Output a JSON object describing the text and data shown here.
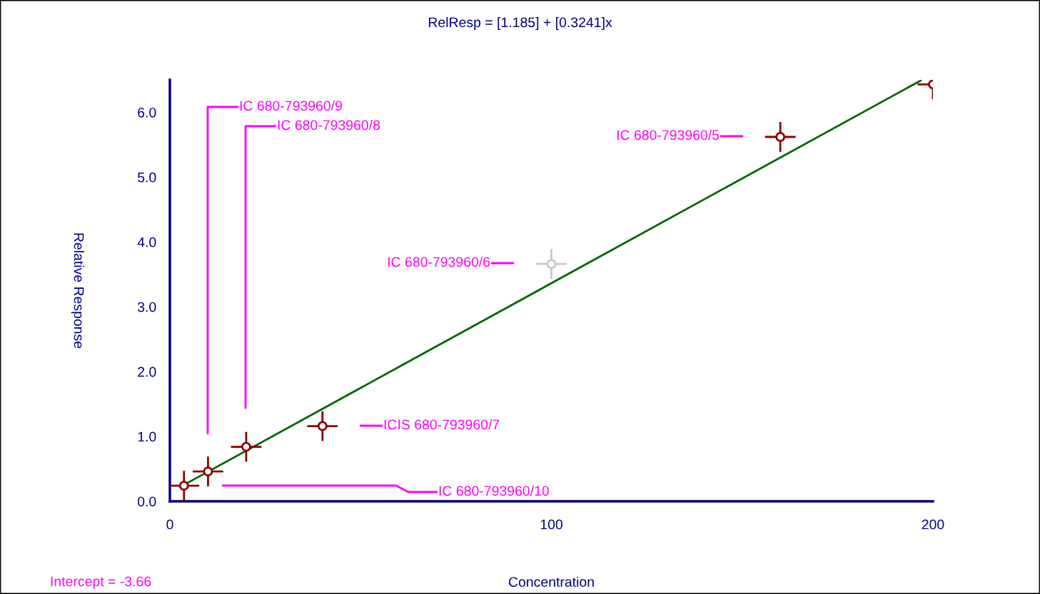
{
  "chart_data": {
    "type": "scatter",
    "title": "RelResp = [1.185] + [0.3241]x",
    "xlabel": "Concentration",
    "ylabel": "Relative Response",
    "xlim": [
      0,
      200
    ],
    "xticks": [
      0,
      100,
      200
    ],
    "ylim": [
      0,
      6.5
    ],
    "yticks": [
      {
        "value": 0,
        "label": "0.0"
      },
      {
        "value": 1,
        "label": "1.0"
      },
      {
        "value": 2,
        "label": "2.0"
      },
      {
        "value": 3,
        "label": "3.0"
      },
      {
        "value": 4,
        "label": "4.0"
      },
      {
        "value": 5,
        "label": "5.0"
      },
      {
        "value": 6,
        "label": "6.0"
      }
    ],
    "grid": false,
    "series": [
      {
        "marker": "circle",
        "x": [
          3.7,
          10,
          20,
          40,
          100,
          160,
          200
        ],
        "values": [
          0.24,
          0.46,
          0.84,
          1.16,
          3.66,
          5.62,
          6.43
        ],
        "colors": [
          "#8b0000",
          "#8b0000",
          "#8b0000",
          "#8b0000",
          "#c8c8c8",
          "#8b0000",
          "#8b0000"
        ],
        "errors": [
          0.23,
          0.23,
          0.23,
          0.23,
          0.23,
          0.23,
          0.23
        ],
        "xerrors": [
          4,
          4,
          4,
          4,
          4,
          4,
          4
        ]
      },
      {
        "type": "line",
        "color": "#006400",
        "x": [
          3.9,
          196.8
        ],
        "values": [
          0.26,
          6.49
        ]
      }
    ],
    "annotations": [
      "IC 680-793960/9",
      "IC 680-793960/8",
      "IC 680-793960/5",
      "IC 680-793960/6",
      "ICIS 680-793960/7",
      "IC 680-793960/10",
      "Intercept = -3.66"
    ]
  }
}
